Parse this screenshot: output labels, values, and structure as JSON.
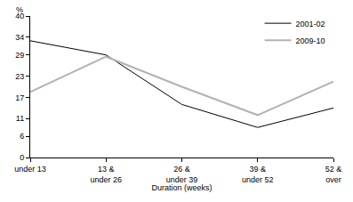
{
  "chart_data": {
    "type": "line",
    "categories": [
      "under 13",
      "13 & under 26",
      "26 & under 39",
      "39 & under 52",
      "52 & over"
    ],
    "series": [
      {
        "name": "2001-02",
        "color": "#000000",
        "values": [
          33,
          29,
          15,
          8.5,
          14
        ]
      },
      {
        "name": "2009-10",
        "color": "#b3b3b3",
        "values": [
          18.5,
          28.5,
          20,
          12,
          21.5
        ]
      }
    ],
    "xlabel": "Duration (weeks)",
    "ylabel": "%",
    "ylim": [
      0,
      40
    ],
    "yticks": [
      0,
      6,
      11,
      17,
      23,
      29,
      34,
      40
    ],
    "grid": false,
    "legend": "top right"
  }
}
